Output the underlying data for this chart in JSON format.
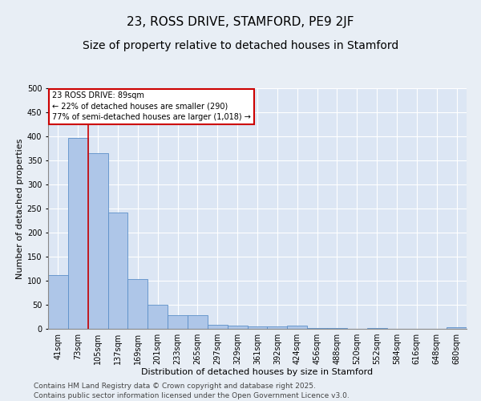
{
  "title": "23, ROSS DRIVE, STAMFORD, PE9 2JF",
  "subtitle": "Size of property relative to detached houses in Stamford",
  "xlabel": "Distribution of detached houses by size in Stamford",
  "ylabel": "Number of detached properties",
  "categories": [
    "41sqm",
    "73sqm",
    "105sqm",
    "137sqm",
    "169sqm",
    "201sqm",
    "233sqm",
    "265sqm",
    "297sqm",
    "329sqm",
    "361sqm",
    "392sqm",
    "424sqm",
    "456sqm",
    "488sqm",
    "520sqm",
    "552sqm",
    "584sqm",
    "616sqm",
    "648sqm",
    "680sqm"
  ],
  "values": [
    112,
    397,
    365,
    241,
    104,
    50,
    29,
    29,
    9,
    7,
    5,
    5,
    7,
    1,
    1,
    0,
    1,
    0,
    0,
    0,
    3
  ],
  "bar_color": "#aec6e8",
  "bar_edge_color": "#5b8fc9",
  "vline_x": 1.5,
  "vline_color": "#cc0000",
  "ann_line1": "23 ROSS DRIVE: 89sqm",
  "ann_line2": "← 22% of detached houses are smaller (290)",
  "ann_line3": "77% of semi-detached houses are larger (1,018) →",
  "ann_box_color": "#ffffff",
  "ann_edge_color": "#cc0000",
  "footer_line1": "Contains HM Land Registry data © Crown copyright and database right 2025.",
  "footer_line2": "Contains public sector information licensed under the Open Government Licence v3.0.",
  "ylim": [
    0,
    500
  ],
  "yticks": [
    0,
    50,
    100,
    150,
    200,
    250,
    300,
    350,
    400,
    450,
    500
  ],
  "bg_color": "#e8eef5",
  "plot_bg_color": "#dce6f4",
  "title_fontsize": 11,
  "subtitle_fontsize": 10,
  "axis_label_fontsize": 8,
  "tick_fontsize": 7,
  "ann_fontsize": 7,
  "footer_fontsize": 6.5
}
